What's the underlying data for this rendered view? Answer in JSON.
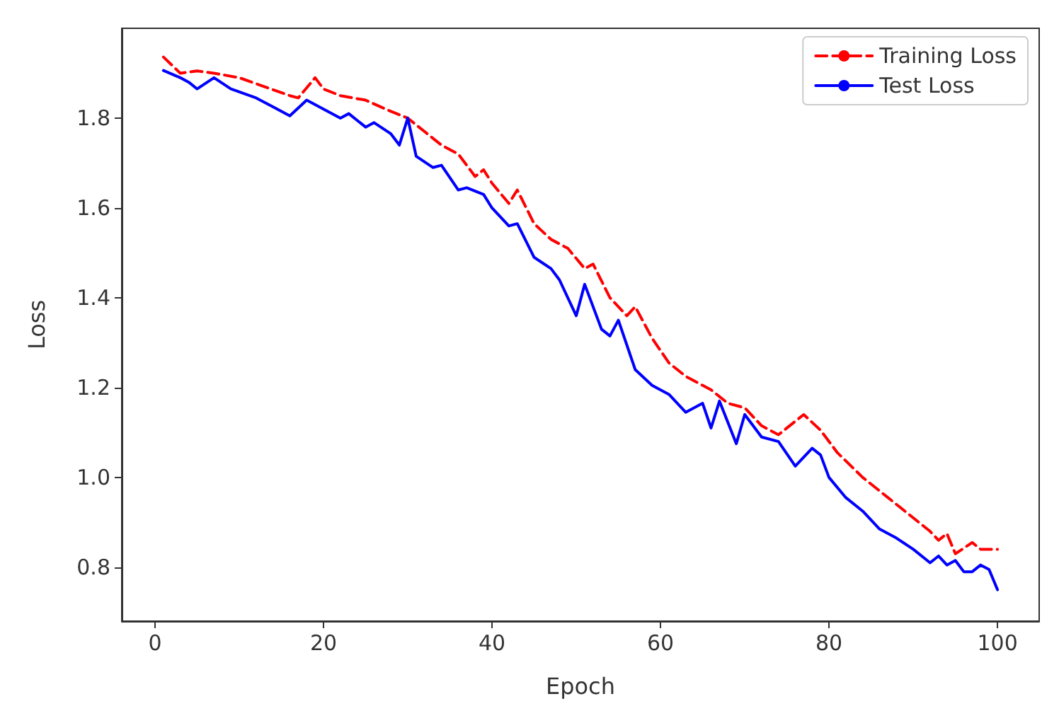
{
  "chart_data": {
    "type": "line",
    "xlabel": "Epoch",
    "ylabel": "Loss",
    "xlim": [
      -3.95,
      104.95
    ],
    "ylim": [
      0.68,
      2.0
    ],
    "xticks": [
      0,
      20,
      40,
      60,
      80,
      100
    ],
    "yticks": [
      0.8,
      {
        "value": 1.0,
        "label": "1.0"
      },
      1.2,
      1.4,
      1.6,
      1.8
    ],
    "grid": false,
    "legend": "top right",
    "marker": "none",
    "series": [
      {
        "name": "Training Loss",
        "color": "#ff0000",
        "line_style": "dashed",
        "x": [
          1,
          3,
          5,
          7,
          10,
          13,
          16,
          17,
          19,
          20,
          22,
          25,
          28,
          30,
          32,
          34,
          36,
          38,
          39,
          40,
          42,
          43,
          45,
          47,
          49,
          51,
          52,
          54,
          56,
          57,
          59,
          61,
          63,
          66,
          68,
          70,
          72,
          74,
          77,
          79,
          81,
          84,
          87,
          90,
          92,
          93,
          94,
          95,
          97,
          98,
          100
        ],
        "values": [
          1.936,
          1.9,
          1.905,
          1.9,
          1.89,
          1.87,
          1.85,
          1.845,
          1.89,
          1.865,
          1.85,
          1.84,
          1.815,
          1.8,
          1.77,
          1.74,
          1.72,
          1.67,
          1.685,
          1.655,
          1.61,
          1.64,
          1.565,
          1.53,
          1.51,
          1.465,
          1.475,
          1.4,
          1.36,
          1.38,
          1.31,
          1.255,
          1.225,
          1.195,
          1.165,
          1.155,
          1.115,
          1.095,
          1.14,
          1.105,
          1.055,
          1.0,
          0.955,
          0.91,
          0.88,
          0.86,
          0.875,
          0.83,
          0.855,
          0.84,
          0.84
        ]
      },
      {
        "name": "Test Loss",
        "color": "#0000ff",
        "line_style": "solid",
        "x": [
          1,
          3,
          4,
          5,
          7,
          9,
          12,
          14,
          16,
          18,
          20,
          22,
          23,
          25,
          26,
          28,
          29,
          30,
          31,
          33,
          34,
          36,
          37,
          39,
          40,
          42,
          43,
          45,
          47,
          48,
          50,
          51,
          53,
          54,
          55,
          57,
          59,
          61,
          63,
          65,
          66,
          67,
          69,
          70,
          72,
          74,
          76,
          78,
          79,
          80,
          82,
          84,
          86,
          88,
          90,
          92,
          93,
          94,
          95,
          96,
          97,
          98,
          99,
          100
        ],
        "values": [
          1.906,
          1.89,
          1.88,
          1.865,
          1.89,
          1.865,
          1.845,
          1.825,
          1.805,
          1.84,
          1.82,
          1.8,
          1.81,
          1.78,
          1.79,
          1.765,
          1.74,
          1.8,
          1.715,
          1.69,
          1.695,
          1.64,
          1.645,
          1.63,
          1.6,
          1.56,
          1.565,
          1.49,
          1.465,
          1.44,
          1.36,
          1.43,
          1.33,
          1.315,
          1.35,
          1.24,
          1.205,
          1.185,
          1.145,
          1.165,
          1.11,
          1.17,
          1.075,
          1.14,
          1.09,
          1.08,
          1.025,
          1.065,
          1.05,
          1.0,
          0.955,
          0.925,
          0.885,
          0.865,
          0.84,
          0.81,
          0.825,
          0.805,
          0.815,
          0.79,
          0.79,
          0.805,
          0.795,
          0.75
        ]
      }
    ]
  }
}
